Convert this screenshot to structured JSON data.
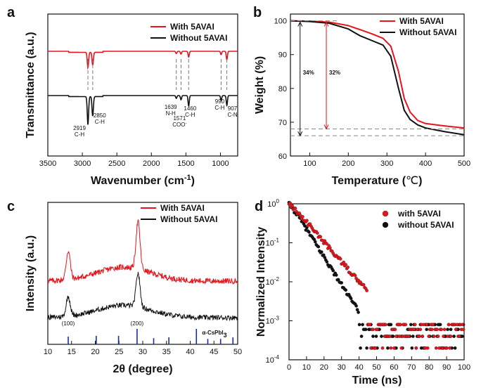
{
  "figure": {
    "panels": [
      {
        "letter": "a"
      },
      {
        "letter": "b"
      },
      {
        "letter": "c"
      },
      {
        "letter": "d"
      }
    ]
  },
  "chart_data": [
    {
      "panel": "a",
      "type": "line",
      "xlabel": "Wavenumber (cm",
      "xlabel_sup": "-1",
      "xlabel_end": ")",
      "ylabel": "Transmittance (a.u.)",
      "xlim": [
        3500,
        750
      ],
      "xticks": [
        3500,
        3000,
        2500,
        2000,
        1500,
        1000
      ],
      "legend": {
        "placement": "top-right"
      },
      "series": [
        {
          "name": "With 5AVAI",
          "color": "#e8141b",
          "peaks": [
            {
              "x": 2919,
              "depth": 0.55
            },
            {
              "x": 2850,
              "depth": 0.45
            },
            {
              "x": 1639,
              "depth": 0.08
            },
            {
              "x": 1571,
              "depth": 0.1
            },
            {
              "x": 1460,
              "depth": 0.2
            },
            {
              "x": 990,
              "depth": 0.12
            },
            {
              "x": 907,
              "depth": 0.3
            }
          ]
        },
        {
          "name": "Without 5AVAI",
          "color": "#111111",
          "peaks": [
            {
              "x": 2919,
              "depth": 0.8
            },
            {
              "x": 2850,
              "depth": 0.55
            },
            {
              "x": 1639,
              "depth": 0.08
            },
            {
              "x": 1571,
              "depth": 0.12
            },
            {
              "x": 1460,
              "depth": 0.3
            },
            {
              "x": 990,
              "depth": 0.14
            },
            {
              "x": 907,
              "depth": 0.28
            }
          ]
        }
      ],
      "annotations": [
        {
          "x": 2919,
          "lines": [
            "2919",
            "C-H"
          ]
        },
        {
          "x": 2850,
          "lines": [
            "2850",
            "C-H"
          ]
        },
        {
          "x": 1639,
          "lines": [
            "1639",
            "N-H"
          ]
        },
        {
          "x": 1571,
          "lines": [
            "1571",
            "COO"
          ],
          "sup": "-"
        },
        {
          "x": 1460,
          "lines": [
            "1460",
            "C-H"
          ]
        },
        {
          "x": 990,
          "lines": [
            "990",
            "C-H"
          ]
        },
        {
          "x": 907,
          "lines": [
            "907",
            "C-N"
          ]
        }
      ],
      "dashed_markers": [
        2919,
        2850,
        1639,
        1571,
        1460,
        990,
        907
      ]
    },
    {
      "panel": "b",
      "type": "line",
      "xlabel": "Temperature (",
      "xlabel_unit": "℃",
      "xlabel_end": ")",
      "ylabel": "Weight (%)",
      "xlim": [
        50,
        500
      ],
      "ylim": [
        60,
        102
      ],
      "xticks": [
        100,
        200,
        300,
        400,
        500
      ],
      "yticks": [
        60,
        70,
        80,
        90,
        100
      ],
      "legend": {
        "placement": "top-right"
      },
      "series": [
        {
          "name": "With 5AVAI",
          "color": "#e8141b",
          "x": [
            50,
            100,
            150,
            200,
            230,
            260,
            290,
            310,
            330,
            345,
            360,
            380,
            400,
            450,
            500
          ],
          "y": [
            100,
            99.9,
            99.6,
            98.6,
            97.4,
            96.2,
            94.8,
            92.5,
            85,
            77,
            73,
            70.5,
            69.6,
            68.9,
            68.3
          ]
        },
        {
          "name": "Without 5AVAI",
          "color": "#111111",
          "x": [
            50,
            100,
            150,
            200,
            230,
            260,
            290,
            310,
            330,
            345,
            360,
            380,
            400,
            450,
            500
          ],
          "y": [
            100,
            99.8,
            99.3,
            97.6,
            95.6,
            94.2,
            92.8,
            89.5,
            80,
            73.5,
            70.8,
            69.2,
            68.3,
            67.2,
            66.3
          ]
        }
      ],
      "reference_lines": [
        68,
        66
      ],
      "annotations": [
        {
          "text": "34%",
          "color": "#111111",
          "x": 75
        },
        {
          "text": "32%",
          "color": "#e8141b",
          "x": 143
        }
      ]
    },
    {
      "panel": "c",
      "type": "line",
      "xlabel": "2θ (degree)",
      "ylabel": "Intensity (a.u.)",
      "xlim": [
        10,
        50
      ],
      "xticks": [
        10,
        15,
        20,
        25,
        30,
        35,
        40,
        45,
        50
      ],
      "legend": {
        "placement": "top-right"
      },
      "series": [
        {
          "name": "With 5AVAI",
          "color": "#e8141b",
          "peaks": [
            {
              "x": 14.3,
              "h": 0.45
            },
            {
              "x": 29.0,
              "h": 0.75
            }
          ]
        },
        {
          "name": "Without 5AVAI",
          "color": "#111111",
          "peaks": [
            {
              "x": 14.3,
              "h": 0.35
            },
            {
              "x": 29.0,
              "h": 0.6
            }
          ]
        }
      ],
      "reference": {
        "label": "α-CsPbI",
        "label_sub": "3",
        "color": "#1a2aa8",
        "sticks": [
          {
            "x": 14.3,
            "h": 0.5
          },
          {
            "x": 20.2,
            "h": 0.55
          },
          {
            "x": 24.9,
            "h": 0.55
          },
          {
            "x": 28.8,
            "h": 1.0
          },
          {
            "x": 32.3,
            "h": 0.4
          },
          {
            "x": 35.5,
            "h": 0.45
          },
          {
            "x": 41.3,
            "h": 1.0
          },
          {
            "x": 43.7,
            "h": 0.35
          },
          {
            "x": 46.4,
            "h": 0.35
          },
          {
            "x": 49.0,
            "h": 0.45
          }
        ],
        "hkl": [
          {
            "x": 14.3,
            "text": "(100)"
          },
          {
            "x": 28.8,
            "text": "(200)"
          }
        ]
      }
    },
    {
      "panel": "d",
      "type": "scatter",
      "xlabel": "Time (ns)",
      "ylabel": "Normalized Intensity",
      "xlim": [
        0,
        100
      ],
      "ylim_log10": [
        -4,
        0
      ],
      "xticks": [
        0,
        10,
        20,
        30,
        40,
        50,
        60,
        70,
        80,
        90,
        100
      ],
      "yticks": [
        {
          "base": "10",
          "exp": "0"
        },
        {
          "base": "10",
          "exp": "-1"
        },
        {
          "base": "10",
          "exp": "-2"
        },
        {
          "base": "10",
          "exp": "-3"
        },
        {
          "base": "10",
          "exp": "-4"
        }
      ],
      "legend": {
        "placement": "top-right"
      },
      "series": [
        {
          "name": "with 5AVAI",
          "color": "#e8141b",
          "decay_per_ns": 0.115,
          "noise_floor": [
            0.0008,
            0.0006,
            0.0004,
            0.0002
          ],
          "floor_from": 45
        },
        {
          "name": "without 5AVAI",
          "color": "#111111",
          "decay_per_ns": 0.16,
          "noise_floor": [
            0.0008,
            0.0006,
            0.0004,
            0.0002
          ],
          "floor_from": 40
        }
      ]
    }
  ]
}
